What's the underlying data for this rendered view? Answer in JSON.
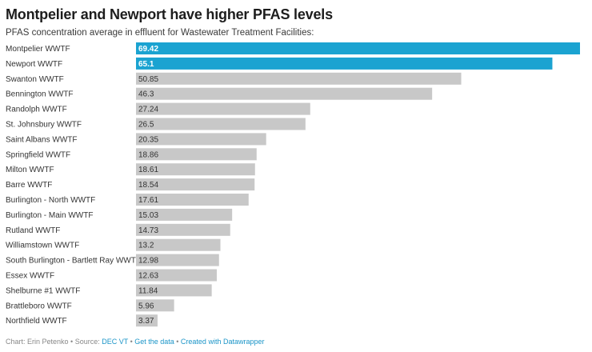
{
  "header": {
    "title": "Montpelier and Newport have higher PFAS levels",
    "subtitle": "PFAS concentration average in effluent for Wastewater Treatment Facilities:"
  },
  "footer": {
    "credit": "Chart: Erin Petenko • Source: ",
    "source_link": "DEC VT",
    "sep1": " • ",
    "data_link": "Get the data",
    "sep2": " • ",
    "created_link": "Created with Datawrapper"
  },
  "colors": {
    "highlight": "#1ba3d1",
    "default": "#c8c8c8",
    "highlight_text": "#ffffff",
    "default_text": "#333333"
  },
  "chart_data": {
    "type": "bar",
    "orientation": "horizontal",
    "title": "Montpelier and Newport have higher PFAS levels",
    "subtitle": "PFAS concentration average in effluent for Wastewater Treatment Facilities:",
    "xlim": [
      0,
      69.42
    ],
    "grid": false,
    "categories": [
      "Montpelier WWTF",
      "Newport WWTF",
      "Swanton WWTF",
      "Bennington WWTF",
      "Randolph WWTF",
      "St. Johnsbury WWTF",
      "Saint Albans WWTF",
      "Springfield WWTF",
      "Milton WWTF",
      "Barre WWTF",
      "Burlington - North WWTF",
      "Burlington - Main WWTF",
      "Rutland WWTF",
      "Williamstown WWTF",
      "South Burlington - Bartlett Ray WWTF",
      "Essex WWTF",
      "Shelburne #1 WWTF",
      "Brattleboro WWTF",
      "Northfield WWTF"
    ],
    "values": [
      69.42,
      65.1,
      50.85,
      46.3,
      27.24,
      26.5,
      20.35,
      18.86,
      18.61,
      18.54,
      17.61,
      15.03,
      14.73,
      13.2,
      12.98,
      12.63,
      11.84,
      5.96,
      3.37
    ],
    "labels": [
      "69.42",
      "65.1",
      "50.85",
      "46.3",
      "27.24",
      "26.5",
      "20.35",
      "18.86",
      "18.61",
      "18.54",
      "17.61",
      "15.03",
      "14.73",
      "13.2",
      "12.98",
      "12.63",
      "11.84",
      "5.96",
      "3.37"
    ],
    "highlighted": [
      "Montpelier WWTF",
      "Newport WWTF"
    ]
  }
}
